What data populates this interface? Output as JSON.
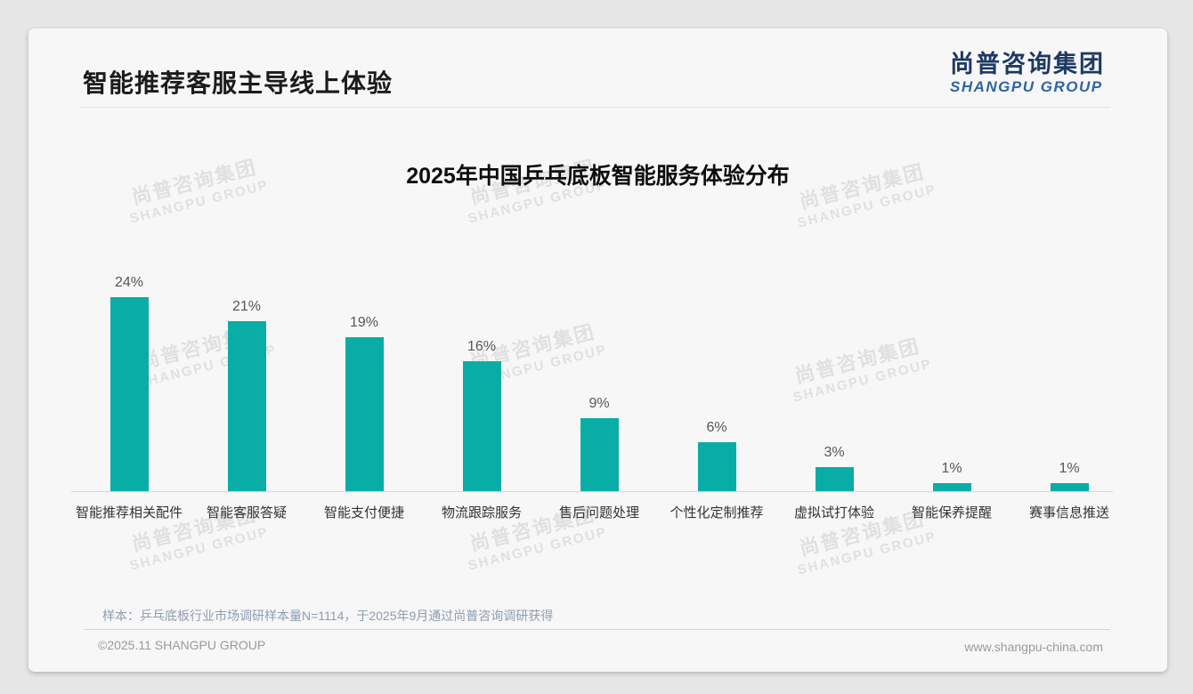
{
  "page": {
    "title": "智能推荐客服主导线上体验"
  },
  "logo": {
    "cn": "尚普咨询集团",
    "en": "SHANGPU GROUP"
  },
  "watermark": {
    "line1": "尚普咨询集团",
    "line2": "SHANGPU GROUP"
  },
  "chart_data": {
    "type": "bar",
    "title": "2025年中国乒乓底板智能服务体验分布",
    "categories": [
      "智能推荐相关配件",
      "智能客服答疑",
      "智能支付便捷",
      "物流跟踪服务",
      "售后问题处理",
      "个性化定制推荐",
      "虚拟试打体验",
      "智能保养提醒",
      "赛事信息推送"
    ],
    "values": [
      24,
      21,
      19,
      16,
      9,
      6,
      3,
      1,
      1
    ],
    "unit": "%",
    "bar_color": "#09ada6",
    "value_label_color": "#565656",
    "ylim": [
      0,
      26
    ],
    "grid": false,
    "value_labels": true,
    "legend": "none"
  },
  "footer": {
    "note": "样本：乒乓底板行业市场调研样本量N=1114，于2025年9月通过尚普咨询调研获得",
    "copyright": "©2025.11 SHANGPU GROUP",
    "website": "www.shangpu-china.com"
  }
}
